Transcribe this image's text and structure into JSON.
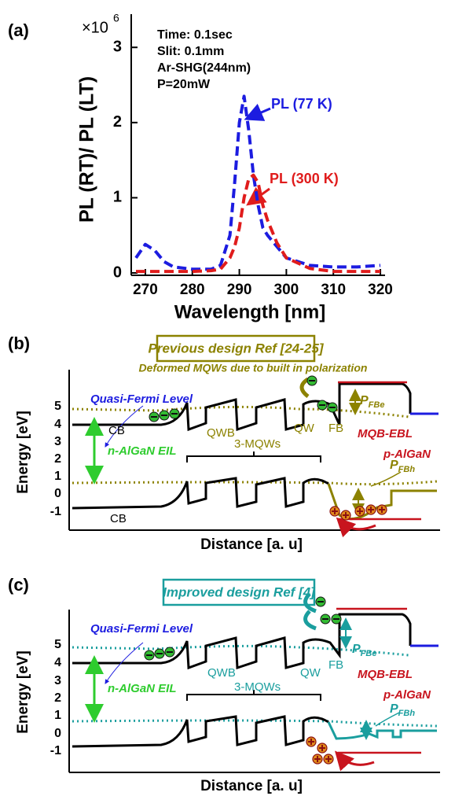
{
  "chart_data": {
    "type": "line",
    "panel_label": "(a)",
    "x_label": "Wavelength [nm]",
    "y_label": "PL (RT)/ PL (LT)",
    "y_multiplier": {
      "base": "×10",
      "exponent": "6"
    },
    "annotations": [
      "Time: 0.1sec",
      "Slit:  0.1mm",
      "Ar-SHG(244nm)",
      "P=20mW"
    ],
    "x": [
      268,
      270,
      272,
      274,
      276,
      280,
      284,
      286,
      288,
      289,
      290,
      291,
      292,
      293,
      294,
      295,
      296,
      298,
      300,
      305,
      310,
      315,
      320
    ],
    "series": [
      {
        "name": "PL (77 K)",
        "color": "#1c1ce0",
        "values": [
          0.2,
          0.38,
          0.3,
          0.15,
          0.08,
          0.05,
          0.05,
          0.1,
          0.5,
          1.2,
          2.0,
          2.35,
          1.9,
          1.3,
          0.9,
          0.6,
          0.5,
          0.35,
          0.2,
          0.1,
          0.08,
          0.08,
          0.1
        ]
      },
      {
        "name": "PL (300 K)",
        "color": "#e01c1c",
        "values": [
          0.02,
          0.02,
          0.02,
          0.02,
          0.02,
          0.02,
          0.03,
          0.05,
          0.2,
          0.35,
          0.6,
          1.0,
          1.25,
          1.3,
          1.2,
          0.9,
          0.7,
          0.4,
          0.2,
          0.06,
          0.02,
          0.02,
          0.02
        ]
      }
    ],
    "xlim": [
      267,
      321
    ],
    "xticks": [
      270,
      280,
      290,
      300,
      310,
      320
    ],
    "ylim": [
      0,
      3.4
    ],
    "yticks": [
      0,
      1,
      2,
      3
    ],
    "grid": false
  },
  "panel_b": {
    "label": "(b)",
    "title": "Previous design Ref [24-25]",
    "note": "Deformed MQWs due to built in polarization",
    "y_label": "Energy [eV]",
    "yticks": [
      5,
      4,
      3,
      2,
      1,
      0,
      -1
    ],
    "x_label": "Distance [a. u]",
    "labels": {
      "quasi_fermi": "Quasi-Fermi Level",
      "cb_top": "CB",
      "eil": "n-AlGaN EIL",
      "qwb": "QWB",
      "mqws": "3-MQWs",
      "qw": "QW",
      "fb": "FB",
      "ebl": "MQB-EBL",
      "p_algan": "p-AlGaN",
      "cb_bottom": "CB"
    },
    "p_fbe": {
      "main": "P",
      "sub": "FBe"
    },
    "p_fbh": {
      "main": "P",
      "sub": "FBh"
    }
  },
  "panel_c": {
    "label": "(c)",
    "title": "Improved design Ref [4]",
    "y_label": "Energy [eV]",
    "yticks": [
      5,
      4,
      3,
      2,
      1,
      0,
      -1
    ],
    "x_label": "Distance [a. u]",
    "labels": {
      "quasi_fermi": "Quasi-Fermi Level",
      "eil": "n-AlGaN EIL",
      "qwb": "QWB",
      "mqws": "3-MQWs",
      "qw": "QW",
      "fb": "FB",
      "ebl": "MQB-EBL",
      "p_algan": "p-AlGaN"
    },
    "p_fbe": {
      "main": "P",
      "sub": "FBe"
    },
    "p_fbh": {
      "main": "P",
      "sub": "FBh"
    }
  }
}
